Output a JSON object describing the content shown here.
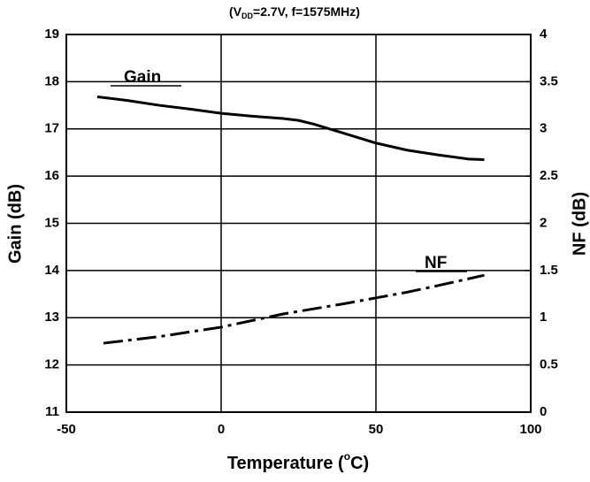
{
  "chart_data": {
    "type": "line",
    "title": [
      "(V",
      "DD",
      "=2.7V, f=1575MHz)"
    ],
    "x_label": [
      "Temperature (",
      "o",
      "C)"
    ],
    "y_label": "Gain (dB)",
    "y2_label": "NF (dB)",
    "xlim": [
      -50,
      100
    ],
    "xticks": [
      -50,
      0,
      50,
      100
    ],
    "ylim": [
      11,
      19
    ],
    "yticks": [
      11,
      12,
      13,
      14,
      15,
      16,
      17,
      18,
      19
    ],
    "y2lim": [
      0,
      4
    ],
    "y2ticks": [
      0,
      0.5,
      1,
      1.5,
      2,
      2.5,
      3,
      3.5,
      4
    ],
    "grid": true,
    "series": [
      {
        "name": "Gain",
        "color": "#000000",
        "dash": "solid",
        "x": [
          -40,
          -30,
          -20,
          -10,
          0,
          10,
          20,
          25,
          30,
          40,
          50,
          60,
          70,
          80,
          85
        ],
        "values": [
          17.68,
          17.6,
          17.5,
          17.42,
          17.33,
          17.27,
          17.22,
          17.18,
          17.1,
          16.9,
          16.7,
          16.55,
          16.45,
          16.36,
          16.35
        ]
      },
      {
        "name": "NF",
        "color": "#000000",
        "dash": "dashdot",
        "axis": "y2",
        "x": [
          -38,
          -20,
          0,
          20,
          40,
          50,
          60,
          70,
          85
        ],
        "values": [
          0.73,
          0.8,
          0.9,
          1.04,
          1.15,
          1.21,
          1.27,
          1.34,
          1.45
        ]
      }
    ]
  }
}
